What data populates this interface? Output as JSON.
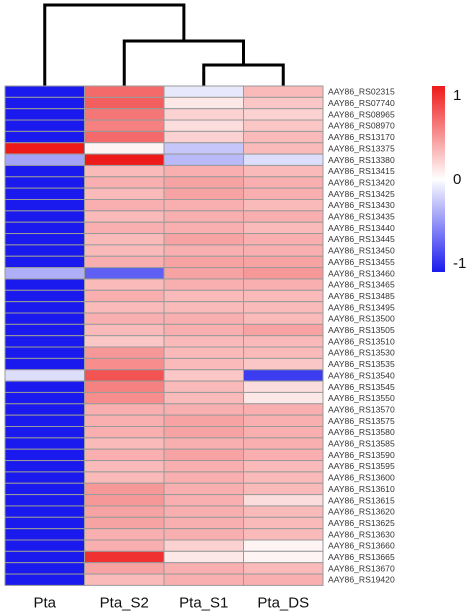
{
  "chart_data": {
    "type": "heatmap",
    "title": "",
    "xlabel": "",
    "ylabel": "",
    "columns": [
      "Pta",
      "Pta_S2",
      "Pta_S1",
      "Pta_DS"
    ],
    "rows": [
      "AAY86_RS02315",
      "AAY86_RS07740",
      "AAY86_RS08965",
      "AAY86_RS08970",
      "AAY86_RS13170",
      "AAY86_RS13375",
      "AAY86_RS13380",
      "AAY86_RS13415",
      "AAY86_RS13420",
      "AAY86_RS13425",
      "AAY86_RS13430",
      "AAY86_RS13435",
      "AAY86_RS13440",
      "AAY86_RS13445",
      "AAY86_RS13450",
      "AAY86_RS13455",
      "AAY86_RS13460",
      "AAY86_RS13465",
      "AAY86_RS13485",
      "AAY86_RS13495",
      "AAY86_RS13500",
      "AAY86_RS13505",
      "AAY86_RS13510",
      "AAY86_RS13530",
      "AAY86_RS13535",
      "AAY86_RS13540",
      "AAY86_RS13545",
      "AAY86_RS13550",
      "AAY86_RS13570",
      "AAY86_RS13575",
      "AAY86_RS13580",
      "AAY86_RS13585",
      "AAY86_RS13590",
      "AAY86_RS13595",
      "AAY86_RS13600",
      "AAY86_RS13610",
      "AAY86_RS13615",
      "AAY86_RS13620",
      "AAY86_RS13625",
      "AAY86_RS13630",
      "AAY86_RS13660",
      "AAY86_RS13665",
      "AAY86_RS13670",
      "AAY86_RS19420"
    ],
    "values": [
      [
        -1,
        0.65,
        -0.1,
        0.3
      ],
      [
        -1,
        0.7,
        0.1,
        0.25
      ],
      [
        -1,
        0.6,
        0.2,
        0.2
      ],
      [
        -1,
        0.55,
        0.15,
        0.25
      ],
      [
        -1,
        0.65,
        0.2,
        0.3
      ],
      [
        1,
        0.05,
        -0.25,
        0.3
      ],
      [
        -0.4,
        1,
        -0.3,
        -0.15
      ],
      [
        -1,
        0.3,
        0.35,
        0.3
      ],
      [
        -1,
        0.35,
        0.4,
        0.35
      ],
      [
        -1,
        0.3,
        0.4,
        0.35
      ],
      [
        -1,
        0.35,
        0.35,
        0.3
      ],
      [
        -1,
        0.3,
        0.35,
        0.35
      ],
      [
        -1,
        0.35,
        0.35,
        0.3
      ],
      [
        -1,
        0.3,
        0.4,
        0.35
      ],
      [
        -1,
        0.3,
        0.35,
        0.35
      ],
      [
        -1,
        0.35,
        0.4,
        0.4
      ],
      [
        -0.35,
        -0.7,
        0.4,
        0.45
      ],
      [
        -1,
        0.3,
        0.35,
        0.35
      ],
      [
        -1,
        0.35,
        0.3,
        0.3
      ],
      [
        -1,
        0.3,
        0.3,
        0.3
      ],
      [
        -1,
        0.35,
        0.35,
        0.3
      ],
      [
        -1,
        0.3,
        0.35,
        0.4
      ],
      [
        -1,
        0.25,
        0.3,
        0.3
      ],
      [
        -1,
        0.45,
        0.3,
        0.3
      ],
      [
        -1,
        0.5,
        0.3,
        0.25
      ],
      [
        -0.15,
        0.75,
        0.25,
        -0.85
      ],
      [
        -1,
        0.55,
        0.3,
        0.15
      ],
      [
        -1,
        0.5,
        0.3,
        0.1
      ],
      [
        -1,
        0.35,
        0.35,
        0.35
      ],
      [
        -1,
        0.35,
        0.4,
        0.35
      ],
      [
        -1,
        0.35,
        0.4,
        0.35
      ],
      [
        -1,
        0.3,
        0.35,
        0.35
      ],
      [
        -1,
        0.35,
        0.4,
        0.35
      ],
      [
        -1,
        0.3,
        0.35,
        0.3
      ],
      [
        -1,
        0.3,
        0.35,
        0.3
      ],
      [
        -1,
        0.45,
        0.35,
        0.3
      ],
      [
        -1,
        0.45,
        0.35,
        0.15
      ],
      [
        -1,
        0.4,
        0.35,
        0.3
      ],
      [
        -1,
        0.4,
        0.35,
        0.3
      ],
      [
        -1,
        0.35,
        0.35,
        0.3
      ],
      [
        -1,
        0.35,
        0.2,
        0.05
      ],
      [
        -1,
        0.9,
        0.1,
        0.05
      ],
      [
        -1,
        0.4,
        0.35,
        0.3
      ],
      [
        -1,
        0.3,
        0.35,
        0.35
      ]
    ],
    "color_scale": {
      "min": -1,
      "max": 1,
      "low_color": "#1a1aee",
      "mid_color": "#ffffff",
      "high_color": "#ee1a1a",
      "ticks": [
        {
          "value": 1,
          "label": "1"
        },
        {
          "value": 0,
          "label": "0"
        },
        {
          "value": -1,
          "label": "-1"
        }
      ]
    },
    "column_dendrogram": {
      "merges": [
        {
          "id": "m1",
          "left": "Pta_S1",
          "right": "Pta_DS",
          "height": 0.25
        },
        {
          "id": "m2",
          "left": "Pta_S2",
          "right": "m1",
          "height": 0.55
        },
        {
          "id": "m3",
          "left": "Pta",
          "right": "m2",
          "height": 1.0
        }
      ]
    },
    "grid": true,
    "legend": "right"
  }
}
